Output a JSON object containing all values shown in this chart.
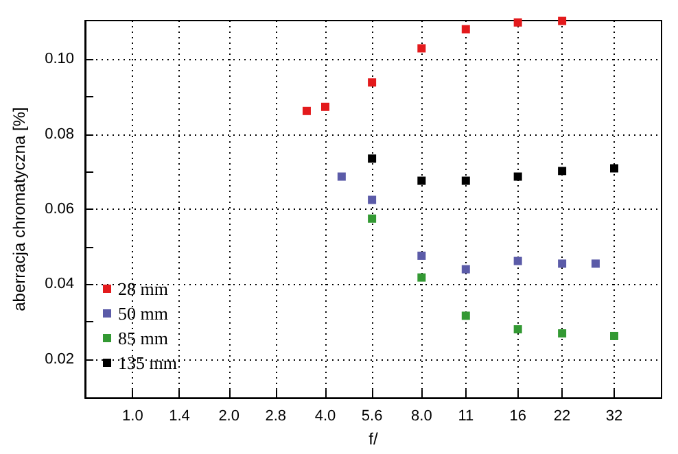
{
  "chart_data": {
    "type": "scatter",
    "xlabel": "f/",
    "ylabel": "aberracja chromatyczna [%]",
    "log": "x",
    "marker": "square",
    "grid": true,
    "legend": "bottom left",
    "xlim": [
      0.71,
      45
    ],
    "ylim": [
      0.0097,
      0.1103
    ],
    "xticks": [
      {
        "value": 1,
        "label": "1.0"
      },
      1.4,
      {
        "value": 2,
        "label": "2.0"
      },
      2.8,
      {
        "value": 4,
        "label": "4.0"
      },
      5.6,
      {
        "value": 8,
        "label": "8.0"
      },
      11,
      16,
      22,
      32
    ],
    "yticks": [
      0.02,
      {
        "value": 0.03,
        "label": null
      },
      0.04,
      {
        "value": 0.05,
        "label": null
      },
      0.06,
      {
        "value": 0.07,
        "label": null
      },
      0.08,
      {
        "value": 0.09,
        "label": null
      },
      {
        "value": 0.1,
        "label": "0.10"
      }
    ],
    "series": [
      {
        "name": "28 mm",
        "color": "#e31a1c",
        "x": [
          3.5,
          4,
          5.6,
          8,
          11,
          16,
          22
        ],
        "values": [
          0.0862,
          0.0873,
          0.0938,
          0.1029,
          0.108,
          0.1098,
          0.1102
        ]
      },
      {
        "name": "50 mm",
        "color": "#5b5ba8",
        "x": [
          4.5,
          5.6,
          8,
          11,
          16,
          22,
          28
        ],
        "values": [
          0.0687,
          0.0625,
          0.0476,
          0.044,
          0.0462,
          0.0455,
          0.0455
        ]
      },
      {
        "name": "85 mm",
        "color": "#339933",
        "x": [
          5.6,
          8,
          11,
          16,
          22,
          32
        ],
        "values": [
          0.0575,
          0.0418,
          0.0316,
          0.028,
          0.0269,
          0.0262
        ]
      },
      {
        "name": "135 mm",
        "color": "#000000",
        "x": [
          5.6,
          8,
          11,
          16,
          22,
          32
        ],
        "values": [
          0.0735,
          0.0676,
          0.0676,
          0.0687,
          0.0702,
          0.0709
        ]
      }
    ]
  }
}
